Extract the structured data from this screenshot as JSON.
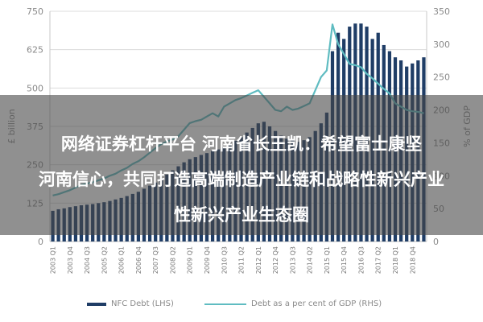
{
  "chart_data": {
    "type": "bar",
    "left_axis": {
      "label": "£ billion",
      "ticks": [
        0,
        125,
        250,
        375,
        500,
        625,
        750
      ],
      "ylim": [
        0,
        750
      ]
    },
    "right_axis": {
      "label": "% of GDP",
      "ticks": [
        0,
        50,
        100,
        150,
        200,
        250,
        300,
        350
      ],
      "ylim": [
        0,
        350
      ]
    },
    "x_labels": [
      "2003 Q1",
      "2003 Q4",
      "2004 Q3",
      "2005 Q2",
      "2006 Q1",
      "2006 Q4",
      "2007 Q3",
      "2008 Q2",
      "2009 Q1",
      "2009 Q4",
      "2010 Q3",
      "2011 Q2",
      "2012 Q1",
      "2012 Q4",
      "2013 Q3",
      "2014 Q2",
      "2015 Q1",
      "2015 Q4",
      "2016 Q3",
      "2017 Q2",
      "2018 Q1",
      "2018 Q4"
    ],
    "series": [
      {
        "name": "NFC Debt (LHS)",
        "type": "bar",
        "axis": "left",
        "color": "#1f3d66",
        "values": [
          100,
          105,
          108,
          112,
          115,
          118,
          120,
          122,
          125,
          128,
          132,
          137,
          142,
          148,
          155,
          162,
          172,
          182,
          192,
          205,
          218,
          232,
          245,
          258,
          268,
          275,
          282,
          288,
          295,
          300,
          308,
          318,
          328,
          340,
          355,
          370,
          385,
          390,
          375,
          360,
          345,
          335,
          330,
          325,
          330,
          340,
          360,
          385,
          420,
          620,
          680,
          660,
          700,
          710,
          710,
          700,
          660,
          680,
          640,
          620,
          600,
          590,
          570,
          580,
          590,
          600
        ]
      },
      {
        "name": "Debt as a per cent of GDP (RHS)",
        "type": "line",
        "axis": "right",
        "color": "#5fbcc1",
        "values": [
          70,
          72,
          75,
          78,
          82,
          86,
          88,
          90,
          93,
          96,
          100,
          103,
          108,
          112,
          118,
          122,
          128,
          135,
          142,
          148,
          152,
          155,
          160,
          170,
          180,
          183,
          185,
          190,
          195,
          190,
          205,
          210,
          215,
          218,
          222,
          226,
          230,
          220,
          210,
          200,
          198,
          205,
          200,
          202,
          206,
          210,
          230,
          250,
          260,
          330,
          300,
          285,
          270,
          268,
          265,
          255,
          248,
          240,
          232,
          225,
          210,
          205,
          200,
          198,
          197,
          195
        ]
      }
    ]
  },
  "overlay": {
    "line1": "网络证券杠杆平台 河南省长王凯：希望富士康坚",
    "line2": "河南信心，共同打造高端制造产业链和战略性新兴产业",
    "line3": "性新兴产业生态圈"
  },
  "legend": {
    "bar_label": "NFC Debt (LHS)",
    "line_label": "Debt as a per cent of GDP (RHS)"
  }
}
